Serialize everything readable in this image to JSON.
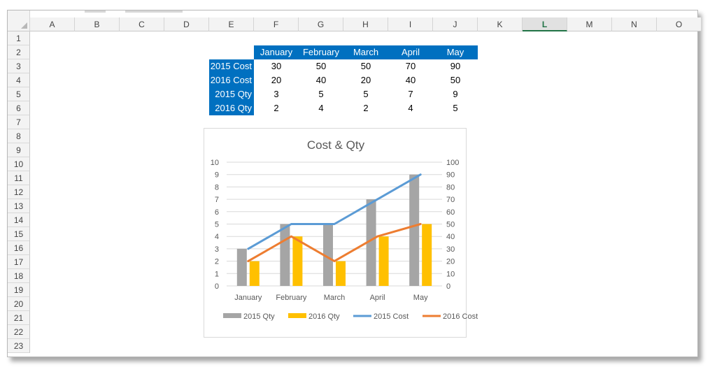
{
  "columns": [
    "A",
    "B",
    "C",
    "D",
    "E",
    "F",
    "G",
    "H",
    "I",
    "J",
    "K",
    "L",
    "M",
    "N",
    "O"
  ],
  "active_column": "L",
  "rows": [
    "1",
    "2",
    "3",
    "4",
    "5",
    "6",
    "7",
    "8",
    "9",
    "10",
    "11",
    "12",
    "13",
    "14",
    "15",
    "16",
    "17",
    "18",
    "19",
    "20",
    "21",
    "22",
    "23"
  ],
  "table": {
    "months": [
      "January",
      "February",
      "March",
      "April",
      "May"
    ],
    "rows": [
      {
        "label": "2015 Cost",
        "values": [
          "30",
          "50",
          "50",
          "70",
          "90"
        ]
      },
      {
        "label": "2016 Cost",
        "values": [
          "20",
          "40",
          "20",
          "40",
          "50"
        ]
      },
      {
        "label": "2015 Qty",
        "values": [
          "3",
          "5",
          "5",
          "7",
          "9"
        ]
      },
      {
        "label": "2016 Qty",
        "values": [
          "2",
          "4",
          "2",
          "4",
          "5"
        ]
      }
    ]
  },
  "colors": {
    "header_fill": "#0070c0",
    "qty2015": "#a5a5a5",
    "qty2016": "#ffc000",
    "cost2015": "#5b9bd5",
    "cost2016": "#ed7d31"
  },
  "chart_data": {
    "type": "bar",
    "title": "Cost & Qty",
    "categories": [
      "January",
      "February",
      "March",
      "April",
      "May"
    ],
    "series": [
      {
        "name": "2015 Qty",
        "kind": "bar",
        "axis": "left",
        "values": [
          3,
          5,
          5,
          7,
          9
        ]
      },
      {
        "name": "2016 Qty",
        "kind": "bar",
        "axis": "left",
        "values": [
          2,
          4,
          2,
          4,
          5
        ]
      },
      {
        "name": "2015 Cost",
        "kind": "line",
        "axis": "right",
        "values": [
          30,
          50,
          50,
          70,
          90
        ]
      },
      {
        "name": "2016 Cost",
        "kind": "line",
        "axis": "right",
        "values": [
          20,
          40,
          20,
          40,
          50
        ]
      }
    ],
    "ylim": [
      0,
      10
    ],
    "y2lim": [
      0,
      100
    ],
    "yticks": [
      "0",
      "1",
      "2",
      "3",
      "4",
      "5",
      "6",
      "7",
      "8",
      "9",
      "10"
    ],
    "y2ticks": [
      "0",
      "10",
      "20",
      "30",
      "40",
      "50",
      "60",
      "70",
      "80",
      "90",
      "100"
    ],
    "grid": true,
    "legend": "bottom"
  }
}
